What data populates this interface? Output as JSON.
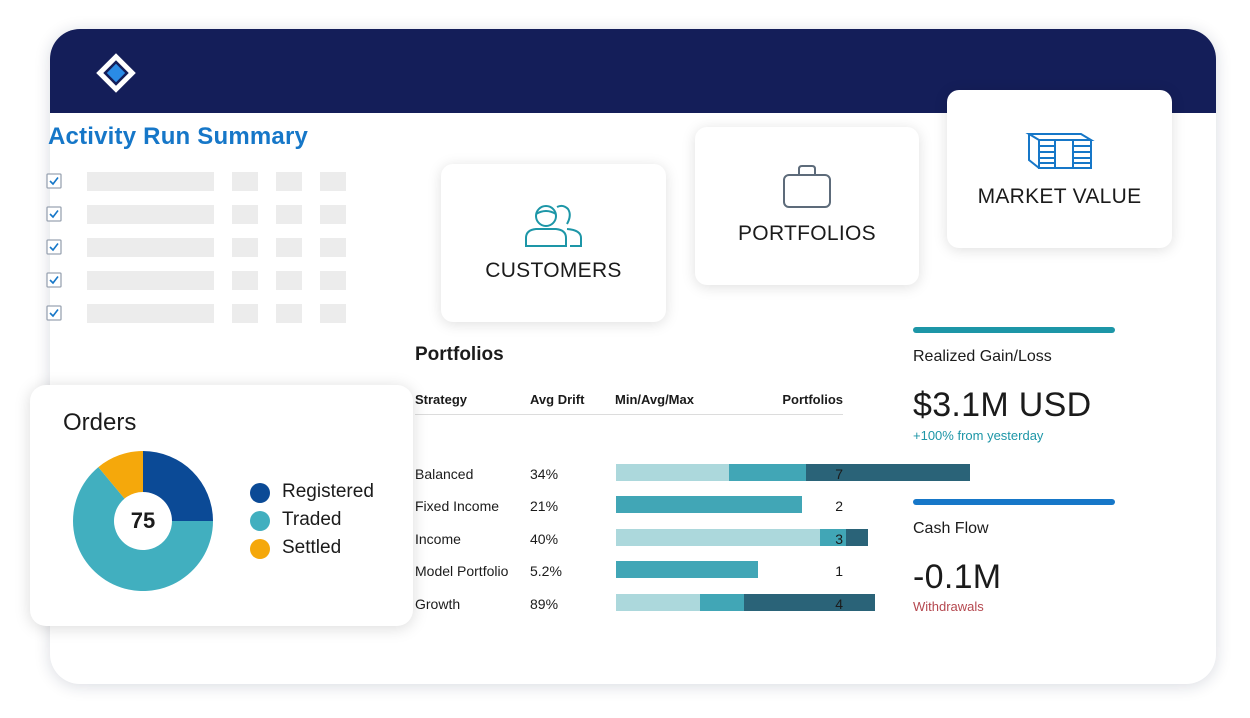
{
  "activity": {
    "title": "Activity Run Summary",
    "rows": [
      true,
      true,
      true,
      true,
      true
    ]
  },
  "cards": {
    "customers": {
      "label": "CUSTOMERS",
      "icon": "customers-icon"
    },
    "portfolios": {
      "label": "PORTFOLIOS",
      "icon": "briefcase-icon"
    },
    "market_value": {
      "label": "MARKET VALUE",
      "icon": "money-stack-icon"
    }
  },
  "portfolios": {
    "title": "Portfolios",
    "headers": {
      "strategy": "Strategy",
      "drift": "Avg Drift",
      "minmax": "Min/Avg/Max",
      "count": "Portfolios"
    },
    "rows": [
      {
        "strategy": "Balanced",
        "drift": "34%",
        "count": "7",
        "segments": [
          0.31,
          0.21,
          0.45
        ]
      },
      {
        "strategy": "Fixed Income",
        "drift": "21%",
        "count": "2",
        "segments": [
          0,
          0.51,
          0
        ]
      },
      {
        "strategy": "Income",
        "drift": "40%",
        "count": "3",
        "segments": [
          0.56,
          0.07,
          0.06
        ]
      },
      {
        "strategy": "Model Portfolio",
        "drift": "5.2%",
        "count": "1",
        "segments": [
          0,
          0.39,
          0
        ]
      },
      {
        "strategy": "Growth",
        "drift": "89%",
        "count": "4",
        "segments": [
          0.23,
          0.12,
          0.36
        ]
      }
    ],
    "bar_colors": [
      "#acd8dc",
      "#41a6b6",
      "#2a6378"
    ]
  },
  "metrics": {
    "realized": {
      "label": "Realized Gain/Loss",
      "value": "$3.1M USD",
      "note": "+100% from yesterday",
      "line_color": "#1d96a7",
      "note_color": "#1d96a7"
    },
    "cashflow": {
      "label": "Cash Flow",
      "value": "-0.1M",
      "note": "Withdrawals",
      "line_color": "#1677c8",
      "note_color": "#b5484f"
    }
  },
  "orders": {
    "title": "Orders",
    "total": "75",
    "segments": [
      {
        "label": "Registered",
        "share": 0.25,
        "color": "#0b4a96"
      },
      {
        "label": "Traded",
        "share": 0.64,
        "color": "#41afbf"
      },
      {
        "label": "Settled",
        "share": 0.11,
        "color": "#f5a80b"
      }
    ]
  }
}
